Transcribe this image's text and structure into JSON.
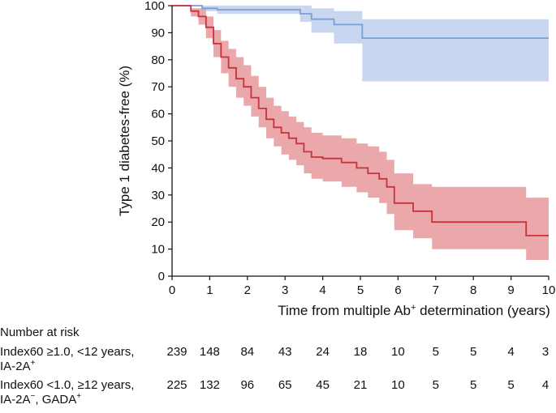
{
  "chart_data": {
    "type": "line",
    "subtype": "kaplan-meier",
    "xlabel_main": "Time from multiple Ab",
    "xlabel_sup": "+",
    "xlabel_tail": " determination (years)",
    "ylabel": "Type 1 diabetes-free (%)",
    "xlim": [
      0,
      10
    ],
    "ylim": [
      0,
      100
    ],
    "x_ticks": [
      "0",
      "1",
      "2",
      "3",
      "4",
      "5",
      "6",
      "7",
      "8",
      "9",
      "10"
    ],
    "y_ticks": [
      "0",
      "10",
      "20",
      "30",
      "40",
      "50",
      "60",
      "70",
      "80",
      "90",
      "100"
    ],
    "series": [
      {
        "name": "Index60 <1.0, ≥12 years, IA-2A−, GADA+",
        "color": "#7a9fd8",
        "band_color": "#c5d5ee",
        "x": [
          0,
          0.8,
          1.2,
          3.4,
          3.7,
          4.3,
          5.05,
          10
        ],
        "y": [
          100,
          99,
          98.5,
          97,
          95,
          93,
          88,
          88
        ],
        "lower": [
          100,
          98,
          97,
          94,
          90,
          86,
          72,
          72
        ],
        "upper": [
          100,
          100,
          100,
          100,
          99,
          98,
          95,
          95
        ]
      },
      {
        "name": "Index60 ≥1.0, <12 years, IA-2A+",
        "color": "#c8323a",
        "band_color": "#e9a3a6",
        "x": [
          0,
          0.5,
          0.7,
          0.9,
          1.1,
          1.3,
          1.5,
          1.7,
          1.9,
          2.1,
          2.3,
          2.5,
          2.7,
          2.9,
          3.1,
          3.3,
          3.5,
          3.7,
          4.0,
          4.5,
          4.9,
          5.2,
          5.5,
          5.7,
          5.9,
          6.4,
          6.9,
          9.4,
          10
        ],
        "y": [
          100,
          98,
          96,
          92,
          86,
          81,
          77,
          73,
          70,
          66,
          62,
          58,
          55,
          53,
          51,
          49,
          46,
          44,
          43.5,
          42,
          40,
          38,
          36,
          33,
          27,
          24,
          20,
          15,
          15
        ],
        "lower": [
          100,
          96,
          93,
          88,
          81,
          75,
          70,
          66,
          63,
          59,
          55,
          51,
          48,
          45,
          43,
          41,
          38,
          36,
          35,
          33,
          31,
          29,
          27,
          23,
          17,
          14,
          10,
          6,
          6
        ],
        "upper": [
          100,
          99,
          99,
          96,
          91,
          87,
          84,
          81,
          78,
          74,
          70,
          66,
          63,
          61,
          59,
          57,
          55,
          53,
          52,
          51,
          49,
          48,
          46,
          43,
          38,
          34,
          33,
          29,
          29
        ]
      }
    ]
  },
  "risk_table": {
    "title": "Number at risk",
    "rows": [
      {
        "label_line1": "Index60 ≥1.0, <12 years,",
        "label_line2_a": "IA-2A",
        "label_line2_sup_a": "+",
        "label_line2_b": "",
        "label_line2_sup_b": "",
        "counts": [
          "239",
          "148",
          "84",
          "43",
          "24",
          "18",
          "10",
          "5",
          "5",
          "4",
          "3"
        ]
      },
      {
        "label_line1": "Index60 <1.0, ≥12 years,",
        "label_line2_a": "IA-2A",
        "label_line2_sup_a": "−",
        "label_line2_b": ", GADA",
        "label_line2_sup_b": "+",
        "counts": [
          "225",
          "132",
          "96",
          "65",
          "45",
          "21",
          "10",
          "5",
          "5",
          "5",
          "4"
        ]
      }
    ]
  }
}
